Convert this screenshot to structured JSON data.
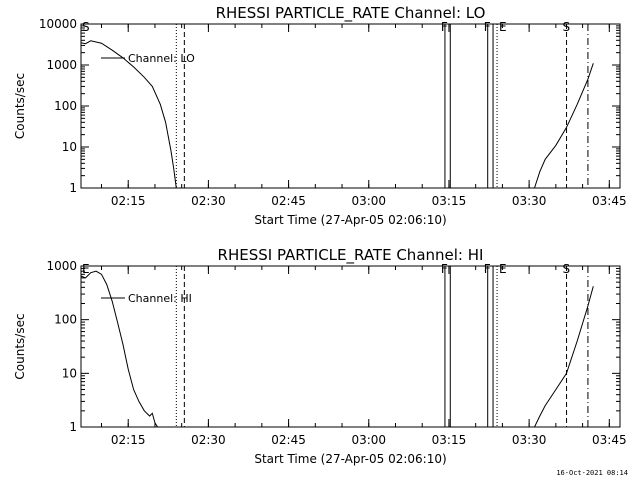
{
  "footer": "16-Oct-2021 08:14",
  "chart_data": [
    {
      "type": "line",
      "title": "RHESSI PARTICLE_RATE Channel: LO",
      "ylabel": "Counts/sec",
      "xlabel": "Start Time (27-Apr-05 02:06:10)",
      "y_scale": "log",
      "ylim": [
        1,
        10000
      ],
      "y_ticks": [
        1,
        10,
        100,
        1000,
        10000
      ],
      "y_tick_labels": [
        "1",
        "10",
        "100",
        "1000",
        "10000"
      ],
      "xlim": [
        "02:06:10",
        "03:47:00"
      ],
      "x_ticks": [
        "02:15",
        "02:30",
        "02:45",
        "03:00",
        "03:15",
        "03:30",
        "03:45"
      ],
      "legend": {
        "label": "Channel: LO",
        "position": "top-left"
      },
      "series": [
        {
          "name": "Channel: LO",
          "segments": [
            [
              [
                "02:06:10",
                3500
              ],
              [
                "02:07:00",
                3300
              ],
              [
                "02:08:00",
                3900
              ],
              [
                "02:10:00",
                3400
              ],
              [
                "02:12:00",
                2300
              ],
              [
                "02:14:00",
                1500
              ],
              [
                "02:16:00",
                900
              ],
              [
                "02:18:00",
                500
              ],
              [
                "02:19:30",
                300
              ],
              [
                "02:21:00",
                110
              ],
              [
                "02:22:00",
                40
              ],
              [
                "02:23:00",
                8
              ],
              [
                "02:23:30",
                3
              ],
              [
                "02:24:00",
                1
              ]
            ],
            [
              [
                "03:31:00",
                1
              ],
              [
                "03:32:00",
                2.5
              ],
              [
                "03:33:00",
                5
              ],
              [
                "03:35:00",
                11
              ],
              [
                "03:37:00",
                30
              ],
              [
                "03:39:00",
                110
              ],
              [
                "03:41:00",
                450
              ],
              [
                "03:42:00",
                1100
              ]
            ]
          ]
        }
      ],
      "vlines": [
        {
          "time": "02:24:00",
          "style": "dotted",
          "label": ""
        },
        {
          "time": "02:25:30",
          "style": "dashed",
          "label": ""
        },
        {
          "time": "03:14:15",
          "style": "solid",
          "label": "F"
        },
        {
          "time": "03:15:15",
          "style": "solid",
          "label": ""
        },
        {
          "time": "03:22:15",
          "style": "solid",
          "label": "F"
        },
        {
          "time": "03:23:15",
          "style": "solid",
          "label": ""
        },
        {
          "time": "03:24:00",
          "style": "dotted",
          "label": "E"
        },
        {
          "time": "03:37:00",
          "style": "dashed",
          "label": "S"
        },
        {
          "time": "03:41:00",
          "style": "dashdot",
          "label": ""
        }
      ],
      "corner_label": "S"
    },
    {
      "type": "line",
      "title": "RHESSI PARTICLE_RATE Channel: HI",
      "ylabel": "Counts/sec",
      "xlabel": "Start Time (27-Apr-05 02:06:10)",
      "y_scale": "log",
      "ylim": [
        1,
        1000
      ],
      "y_ticks": [
        1,
        10,
        100,
        1000
      ],
      "y_tick_labels": [
        "1",
        "10",
        "100",
        "1000"
      ],
      "xlim": [
        "02:06:10",
        "03:47:00"
      ],
      "x_ticks": [
        "02:15",
        "02:30",
        "02:45",
        "03:00",
        "03:15",
        "03:30",
        "03:45"
      ],
      "legend": {
        "label": "Channel: HI",
        "position": "top-left"
      },
      "series": [
        {
          "name": "Channel: HI",
          "segments": [
            [
              [
                "02:06:10",
                650
              ],
              [
                "02:07:00",
                600
              ],
              [
                "02:08:00",
                750
              ],
              [
                "02:09:00",
                800
              ],
              [
                "02:10:00",
                700
              ],
              [
                "02:11:00",
                450
              ],
              [
                "02:12:00",
                220
              ],
              [
                "02:13:00",
                90
              ],
              [
                "02:14:00",
                35
              ],
              [
                "02:15:00",
                12
              ],
              [
                "02:16:00",
                5
              ],
              [
                "02:17:00",
                3
              ],
              [
                "02:18:00",
                2
              ],
              [
                "02:19:00",
                1.6
              ],
              [
                "02:19:30",
                1.8
              ],
              [
                "02:20:00",
                1.2
              ],
              [
                "02:20:30",
                1
              ]
            ],
            [
              [
                "03:31:00",
                1
              ],
              [
                "03:32:00",
                1.6
              ],
              [
                "03:33:00",
                2.5
              ],
              [
                "03:35:00",
                5
              ],
              [
                "03:37:00",
                10
              ],
              [
                "03:39:00",
                40
              ],
              [
                "03:41:00",
                180
              ],
              [
                "03:42:00",
                420
              ]
            ]
          ]
        }
      ],
      "vlines": [
        {
          "time": "02:24:00",
          "style": "dotted",
          "label": ""
        },
        {
          "time": "02:25:30",
          "style": "dashed",
          "label": ""
        },
        {
          "time": "03:14:15",
          "style": "solid",
          "label": "F"
        },
        {
          "time": "03:15:15",
          "style": "solid",
          "label": ""
        },
        {
          "time": "03:22:15",
          "style": "solid",
          "label": "F"
        },
        {
          "time": "03:23:15",
          "style": "solid",
          "label": ""
        },
        {
          "time": "03:24:00",
          "style": "dotted",
          "label": "E"
        },
        {
          "time": "03:37:00",
          "style": "dashed",
          "label": "S"
        },
        {
          "time": "03:41:00",
          "style": "dashdot",
          "label": ""
        }
      ],
      "corner_label": "E"
    }
  ]
}
